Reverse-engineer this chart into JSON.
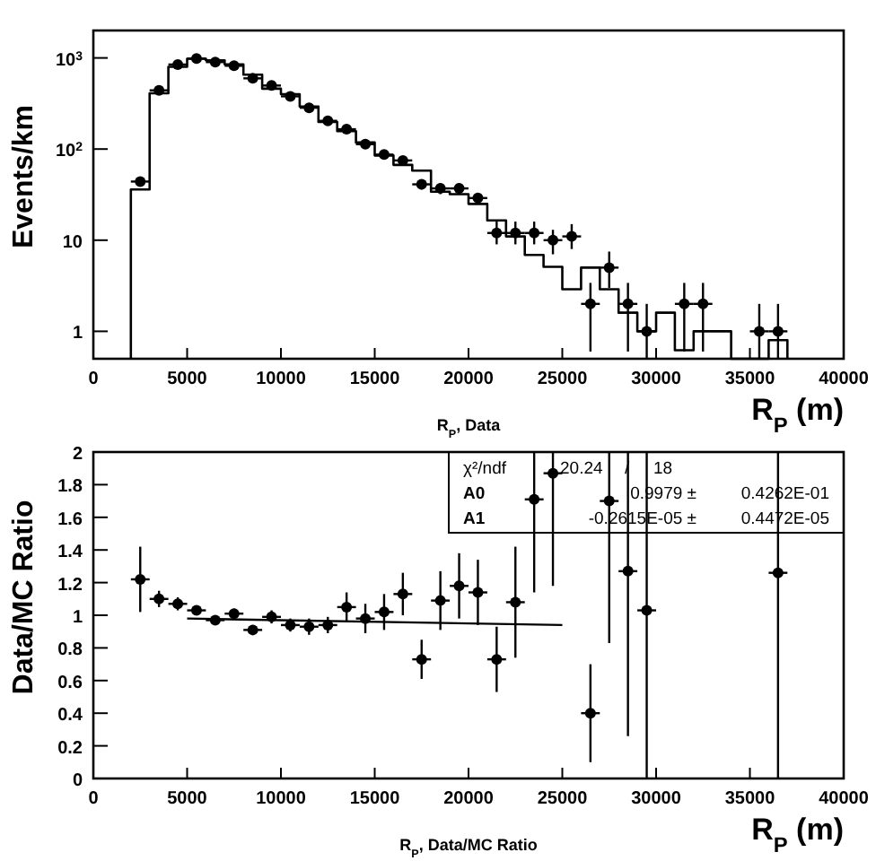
{
  "chart_data": [
    {
      "type": "histogram",
      "ylabel": "Events/km",
      "xlabel": "R$_{P}$ (m)",
      "annotations": [
        "R$_{P}$, Data"
      ],
      "log": "y",
      "xlim": [
        0,
        40000
      ],
      "xticks": [
        0,
        5000,
        10000,
        15000,
        20000,
        25000,
        30000,
        35000,
        40000
      ],
      "ylim": [
        0.5,
        2000
      ],
      "yticks": [
        1,
        10,
        {
          "value": 100,
          "label": "10$^{2}$"
        },
        {
          "value": 1000,
          "label": "10$^{3}$"
        }
      ],
      "marker": "circle",
      "bins": [
        2000,
        3000,
        4000,
        5000,
        6000,
        7000,
        8000,
        9000,
        10000,
        11000,
        12000,
        13000,
        14000,
        15000,
        16000,
        17000,
        18000,
        19000,
        20000,
        21000,
        22000,
        23000,
        24000,
        25000,
        26000,
        27000,
        28000,
        29000,
        30000,
        31000,
        32000,
        33000,
        34000,
        35000,
        36000,
        37000
      ],
      "series": [
        {
          "color": "#000000",
          "values": [
            36,
            410,
            800,
            980,
            940,
            850,
            655,
            460,
            400,
            293,
            198,
            157,
            118,
            85,
            67,
            58,
            34,
            32,
            25,
            16.5,
            11,
            6.9,
            5.1,
            2.9,
            5,
            2.9,
            1.6,
            1,
            1.6,
            0.62,
            1,
            1,
            null,
            null,
            0.8
          ]
        },
        {
          "type": "scatter",
          "color": "#000000",
          "x": [
            2500,
            3500,
            4500,
            5500,
            6500,
            7500,
            8500,
            9500,
            10500,
            11500,
            12500,
            13500,
            14500,
            15500,
            16500,
            17500,
            18500,
            19500,
            20500,
            21500,
            22500,
            23500,
            24500,
            25500,
            26500,
            27500,
            28500,
            29500,
            31500,
            32500,
            35500,
            36500
          ],
          "values": [
            44,
            441,
            847,
            985,
            900,
            820,
            597,
            498,
            379,
            284,
            204,
            165,
            113,
            87,
            75,
            41,
            37,
            37,
            29,
            12,
            12,
            12,
            10,
            11,
            2,
            5,
            2,
            1,
            2,
            2,
            1,
            1
          ],
          "errors": [
            null,
            null,
            null,
            null,
            null,
            null,
            null,
            null,
            null,
            null,
            null,
            null,
            null,
            null,
            null,
            5,
            5,
            5,
            4,
            [
              9,
              16
            ],
            [
              9,
              16
            ],
            [
              9,
              16
            ],
            3,
            [
              8,
              15
            ],
            1.4,
            [
              3,
              7.5
            ],
            1.4,
            [
              0.5,
              2
            ],
            1.4,
            1.4,
            [
              0.5,
              2
            ],
            [
              0.5,
              2
            ]
          ],
          "xerrors": [
            500,
            500,
            500,
            500,
            500,
            500,
            500,
            500,
            500,
            500,
            500,
            500,
            500,
            500,
            500,
            500,
            500,
            500,
            500,
            500,
            500,
            500,
            500,
            500,
            500,
            500,
            500,
            500,
            500,
            500,
            500,
            500
          ]
        }
      ]
    },
    {
      "type": "scatter",
      "ylabel": "Data/MC Ratio",
      "xlabel": "R$_{P}$ (m)",
      "annotations": [
        "R$_{P}$, Data/MC Ratio",
        "χ²/ndf  20.24  /  18",
        "A0  0.9979 ±  0.4262E-01",
        "A1  -0.2615E-05 ±  0.4472E-05"
      ],
      "xlim": [
        0,
        40000
      ],
      "xticks": [
        0,
        5000,
        10000,
        15000,
        20000,
        25000,
        30000,
        35000,
        40000
      ],
      "ylim": [
        0,
        2
      ],
      "yticks": [
        0,
        0.2,
        0.4,
        0.6,
        0.8,
        1,
        1.2,
        1.4,
        1.6,
        1.8,
        2
      ],
      "marker": "circle",
      "series": [
        {
          "color": "#000000",
          "x": [
            2500,
            3500,
            4500,
            5500,
            6500,
            7500,
            8500,
            9500,
            10500,
            11500,
            12500,
            13500,
            14500,
            15500,
            16500,
            17500,
            18500,
            19500,
            20500,
            21500,
            22500,
            23500,
            24500,
            26500,
            27500,
            28500,
            29500,
            36500
          ],
          "values": [
            1.22,
            1.1,
            1.07,
            1.03,
            0.97,
            1.01,
            0.91,
            0.99,
            0.94,
            0.93,
            0.94,
            1.05,
            0.98,
            1.02,
            1.13,
            0.73,
            1.09,
            1.18,
            1.14,
            0.73,
            1.08,
            1.71,
            1.87,
            0.4,
            1.7,
            1.27,
            1.03,
            1.26
          ],
          "errors": [
            0.2,
            0.05,
            0.04,
            0.03,
            0.03,
            0.03,
            0.03,
            0.04,
            0.04,
            0.05,
            0.05,
            0.09,
            0.09,
            0.11,
            0.13,
            0.12,
            0.18,
            0.2,
            0.2,
            0.2,
            0.34,
            [
              1.14,
              2
            ],
            [
              1.18,
              2
            ],
            0.3,
            [
              0.83,
              2
            ],
            [
              0.26,
              2
            ],
            [
              0,
              2
            ],
            [
              0,
              2
            ]
          ],
          "xerrors": [
            500,
            500,
            500,
            500,
            500,
            500,
            500,
            500,
            500,
            500,
            500,
            500,
            500,
            500,
            500,
            500,
            500,
            500,
            500,
            500,
            500,
            500,
            500,
            500,
            500,
            500,
            500,
            500
          ]
        },
        {
          "type": "line",
          "marker": "none",
          "color": "#000000",
          "x": [
            5000,
            25000
          ],
          "values": [
            0.98,
            0.94
          ]
        }
      ]
    }
  ]
}
